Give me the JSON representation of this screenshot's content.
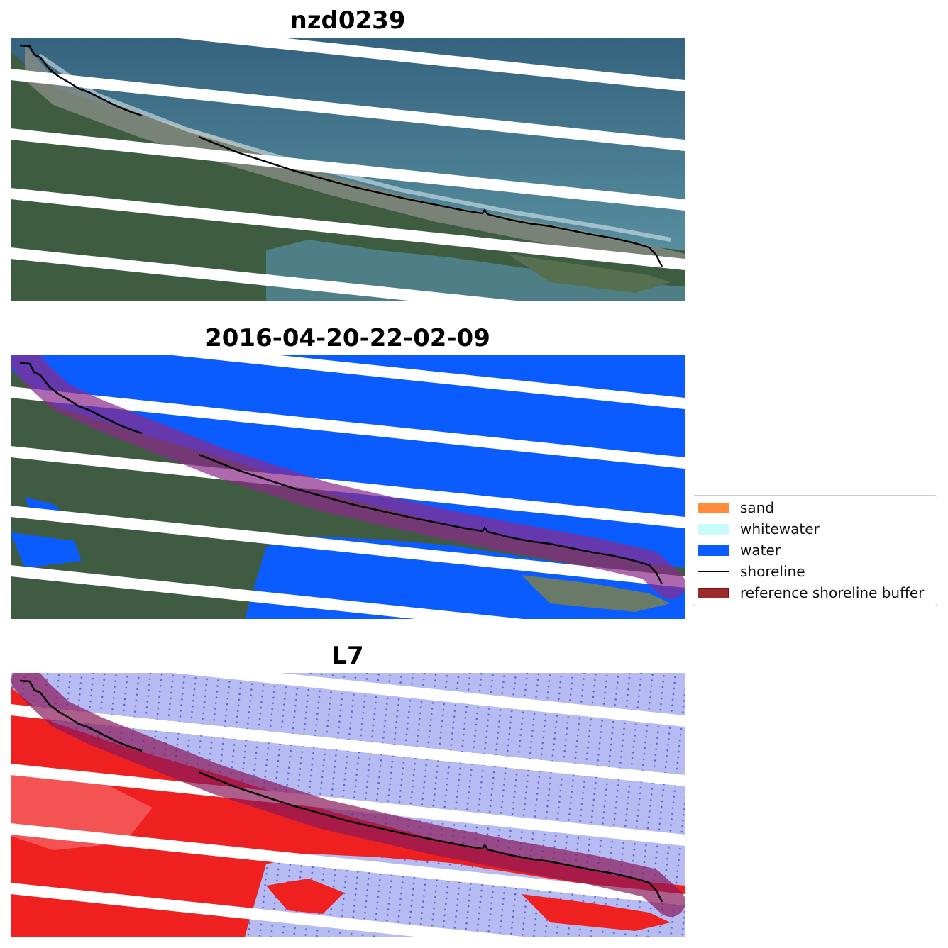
{
  "panels": [
    {
      "title": "nzd0239",
      "view": "rgb"
    },
    {
      "title": "2016-04-20-22-02-09",
      "view": "classified"
    },
    {
      "title": "L7",
      "view": "index"
    }
  ],
  "legend": {
    "items": [
      {
        "label": "sand",
        "kind": "patch",
        "color": "#ff8c3a"
      },
      {
        "label": "whitewater",
        "kind": "patch",
        "color": "#c8fbf8"
      },
      {
        "label": "water",
        "kind": "patch",
        "color": "#0a5cff"
      },
      {
        "label": "shoreline",
        "kind": "line",
        "color": "#000000"
      },
      {
        "label": "reference shoreline buffer",
        "kind": "patch",
        "color": "#9b2b2b",
        "edge": "#7a1515"
      }
    ]
  },
  "colors": {
    "ocean": "#3f6f8d",
    "ocean_shallow": "#5a8ea2",
    "land": "#3b5a3f",
    "land_dark": "#2e4732",
    "water_class": "#0a5cff",
    "buffer": "#8a2a6a",
    "index_water": "#b6bbf2",
    "index_land": "#ee2020"
  }
}
